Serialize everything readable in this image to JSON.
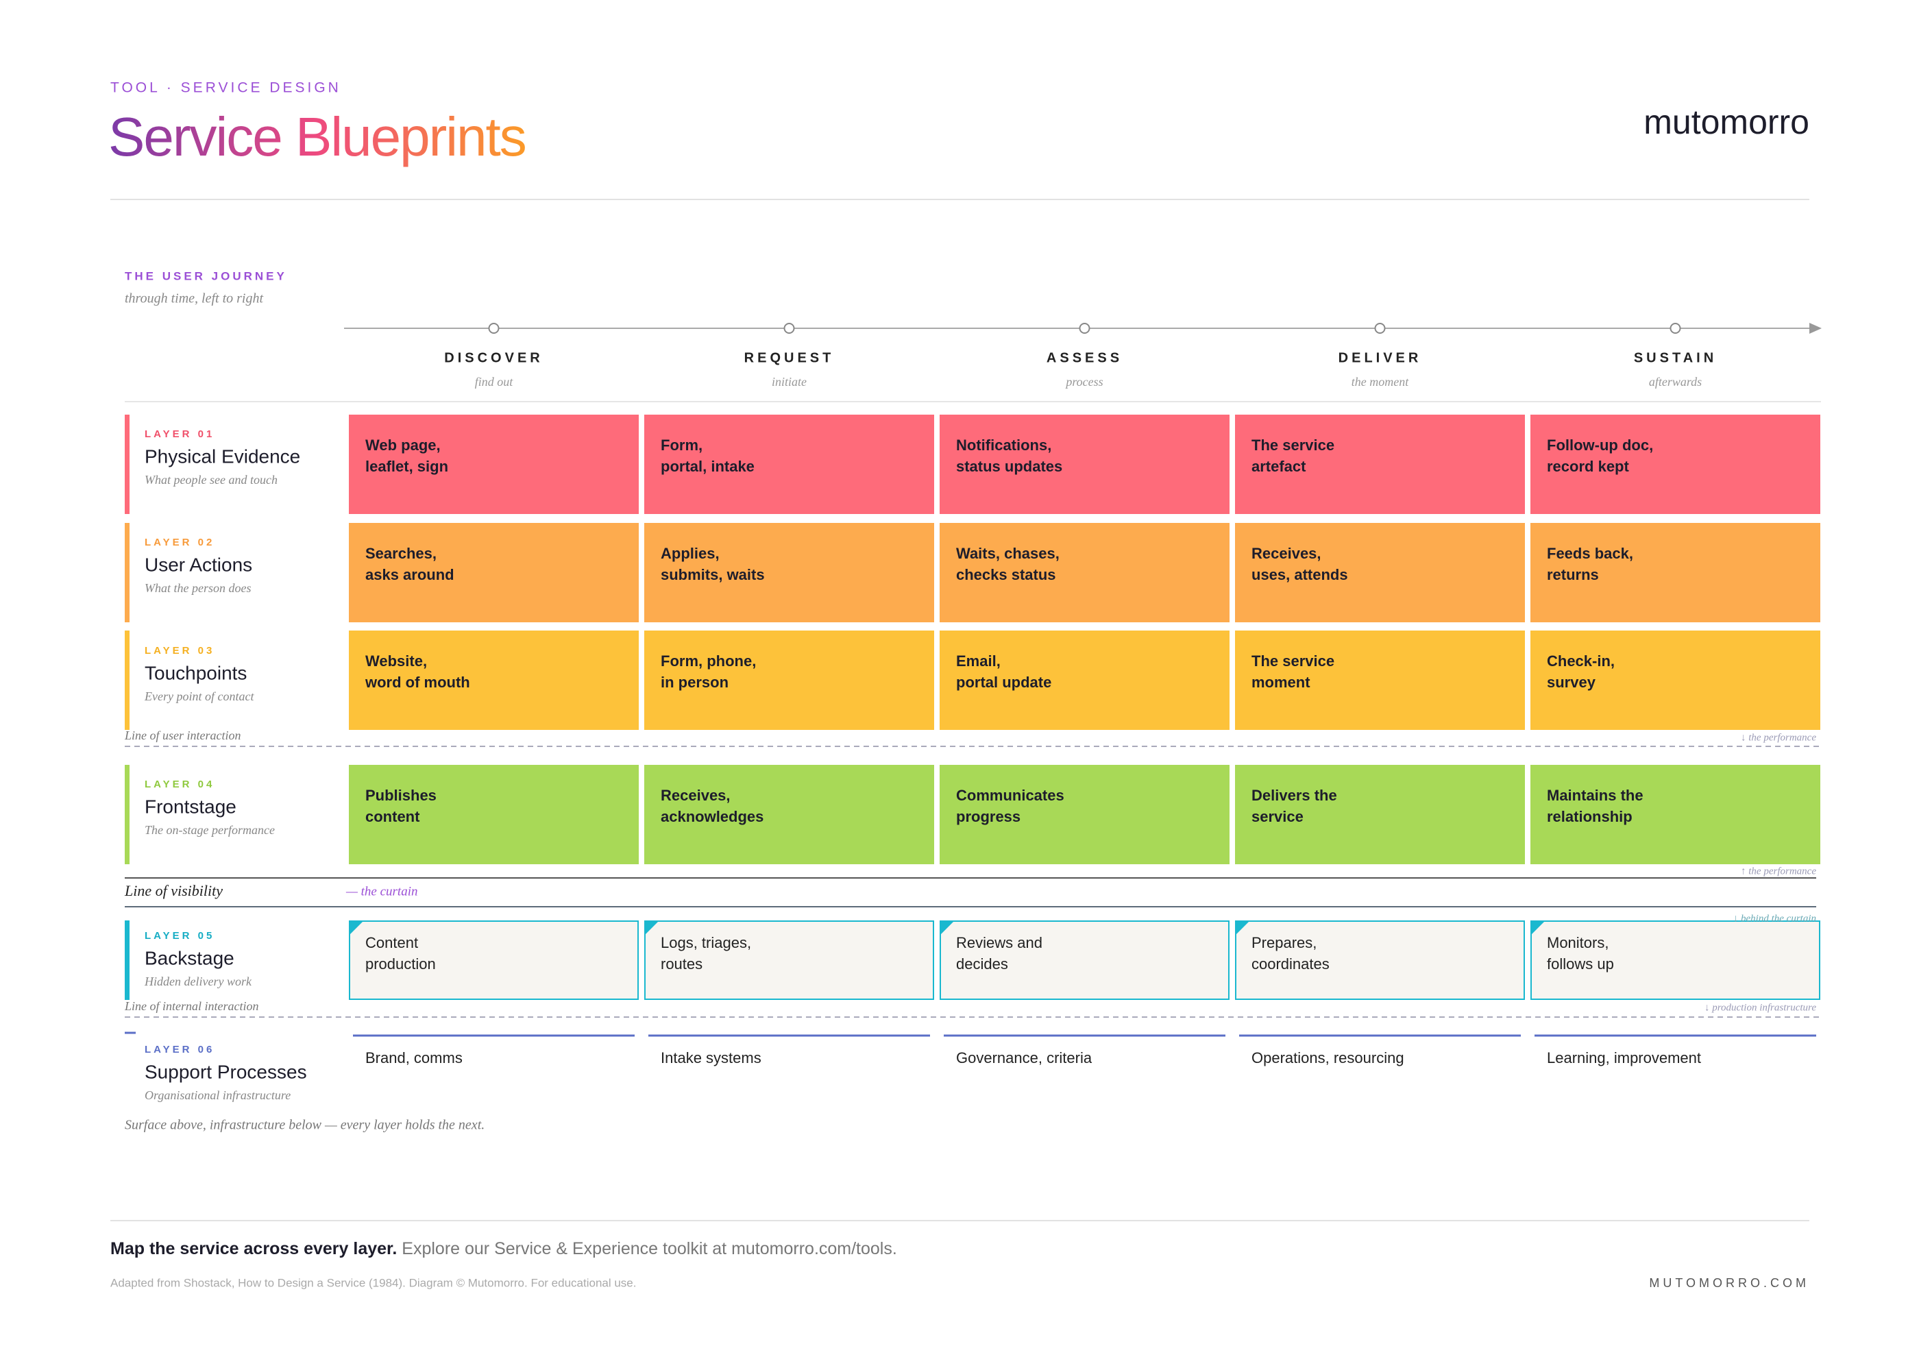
{
  "header": {
    "eyebrow": "TOOL · SERVICE DESIGN",
    "title": "Service Blueprints",
    "brand": "mutomorro"
  },
  "journey": {
    "label": "THE USER JOURNEY",
    "sublabel": "through time, left to right",
    "stages": [
      {
        "name": "DISCOVER",
        "sub": "find out"
      },
      {
        "name": "REQUEST",
        "sub": "initiate"
      },
      {
        "name": "ASSESS",
        "sub": "process"
      },
      {
        "name": "DELIVER",
        "sub": "the moment"
      },
      {
        "name": "SUSTAIN",
        "sub": "afterwards"
      }
    ]
  },
  "layers": [
    {
      "tag": "LAYER 01",
      "title": "Physical Evidence",
      "subtitle": "What people see and touch",
      "color": "#fe6b7a",
      "tag_color": "#f0506a",
      "cells": [
        [
          "Web page,",
          "leaflet, sign"
        ],
        [
          "Form,",
          "portal, intake"
        ],
        [
          "Notifications,",
          "status updates"
        ],
        [
          "The service",
          "artefact"
        ],
        [
          "Follow-up doc,",
          "record kept"
        ]
      ]
    },
    {
      "tag": "LAYER 02",
      "title": "User Actions",
      "subtitle": "What the person does",
      "color": "#fdab4e",
      "tag_color": "#f79a3a",
      "cells": [
        [
          "Searches,",
          "asks around"
        ],
        [
          "Applies,",
          "submits, waits"
        ],
        [
          "Waits, chases,",
          "checks status"
        ],
        [
          "Receives,",
          "uses, attends"
        ],
        [
          "Feeds back,",
          "returns"
        ]
      ]
    },
    {
      "tag": "LAYER 03",
      "title": "Touchpoints",
      "subtitle": "Every point of contact",
      "color": "#fdc23a",
      "tag_color": "#f5b021",
      "cells": [
        [
          "Website,",
          "word of mouth"
        ],
        [
          "Form, phone,",
          "in person"
        ],
        [
          "Email,",
          "portal update"
        ],
        [
          "The service",
          "moment"
        ],
        [
          "Check-in,",
          "survey"
        ]
      ]
    },
    {
      "tag": "LAYER 04",
      "title": "Frontstage",
      "subtitle": "The on-stage performance",
      "color": "#a8d957",
      "tag_color": "#8fc93e",
      "cells": [
        [
          "Publishes",
          "content"
        ],
        [
          "Receives,",
          "acknowledges"
        ],
        [
          "Communicates",
          "progress"
        ],
        [
          "Delivers the",
          "service"
        ],
        [
          "Maintains the",
          "relationship"
        ]
      ]
    },
    {
      "tag": "LAYER 05",
      "title": "Backstage",
      "subtitle": "Hidden delivery work",
      "color": "#1ab8cf",
      "tag_color": "#16adc4",
      "cells": [
        [
          "Content",
          "production"
        ],
        [
          "Logs, triages,",
          "routes"
        ],
        [
          "Reviews and",
          "decides"
        ],
        [
          "Prepares,",
          "coordinates"
        ],
        [
          "Monitors,",
          "follows up"
        ]
      ]
    },
    {
      "tag": "LAYER 06",
      "title": "Support Processes",
      "subtitle": "Organisational infrastructure",
      "color": "#5b6fc7",
      "tag_color": "#5b6fc7",
      "cells": [
        [
          "Brand, comms"
        ],
        [
          "Intake systems"
        ],
        [
          "Governance, criteria"
        ],
        [
          "Operations, resourcing"
        ],
        [
          "Learning, improvement"
        ]
      ]
    }
  ],
  "lines": {
    "user_interaction": "Line of user interaction",
    "visibility": "Line of visibility",
    "curtain": "— the curtain",
    "internal_interaction": "Line of internal interaction"
  },
  "annotations": {
    "above_frontstage": "↓ the performance",
    "below_frontstage": "↑ the performance",
    "behind_curtain": "↓ behind the curtain",
    "production": "↓ production infrastructure"
  },
  "closing_note": "Surface above, infrastructure below — every layer holds the next.",
  "footer": {
    "lead": "Map the service across every layer.",
    "text": " Explore our Service & Experience toolkit at mutomorro.com/tools.",
    "credit": "Adapted from Shostack, How to Design a Service (1984). Diagram © Mutomorro. For educational use.",
    "site": "MUTOMORRO.COM"
  }
}
